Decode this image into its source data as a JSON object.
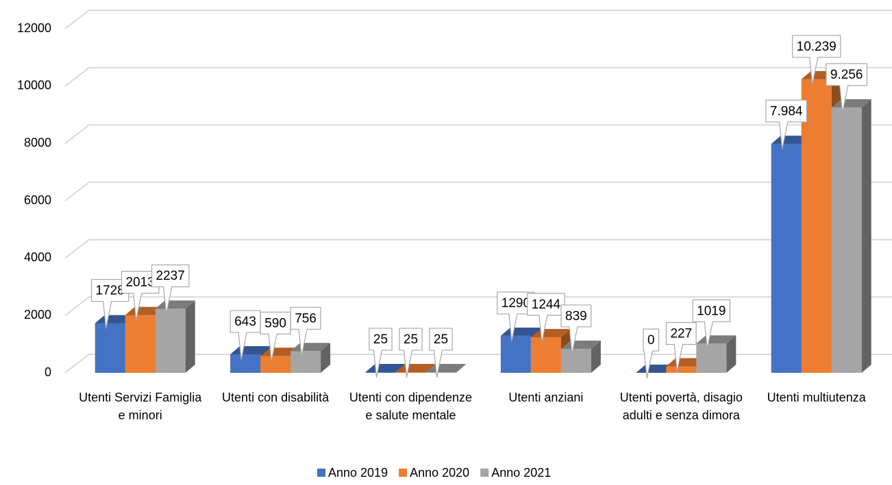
{
  "chart_data": {
    "type": "bar3d",
    "categories": [
      "Utenti Servizi Famiglia e minori",
      "Utenti con disabilità",
      "Utenti con dipendenze e salute mentale",
      "Utenti anziani",
      "Utenti povertà, disagio adulti e senza dimora",
      "Utenti multiutenza"
    ],
    "series": [
      {
        "name": "Anno 2019",
        "color": "#4472c4",
        "values": [
          1728,
          643,
          25,
          1290,
          0,
          7984
        ],
        "value_labels": [
          "1728",
          "643",
          "25",
          "1290",
          "0",
          "7.984"
        ]
      },
      {
        "name": "Anno 2020",
        "color": "#ed7d31",
        "values": [
          2013,
          590,
          25,
          1244,
          227,
          10239
        ],
        "value_labels": [
          "2013",
          "590",
          "25",
          "1244",
          "227",
          "10.239"
        ]
      },
      {
        "name": "Anno 2021",
        "color": "#a5a5a5",
        "values": [
          2237,
          756,
          25,
          839,
          1019,
          9256
        ],
        "value_labels": [
          "2237",
          "756",
          "25",
          "839",
          "1019",
          "9.256"
        ]
      }
    ],
    "ylim": [
      0,
      12000
    ],
    "yticks": [
      0,
      2000,
      4000,
      6000,
      8000,
      10000,
      12000
    ],
    "grid": true,
    "legend": "bottom"
  }
}
